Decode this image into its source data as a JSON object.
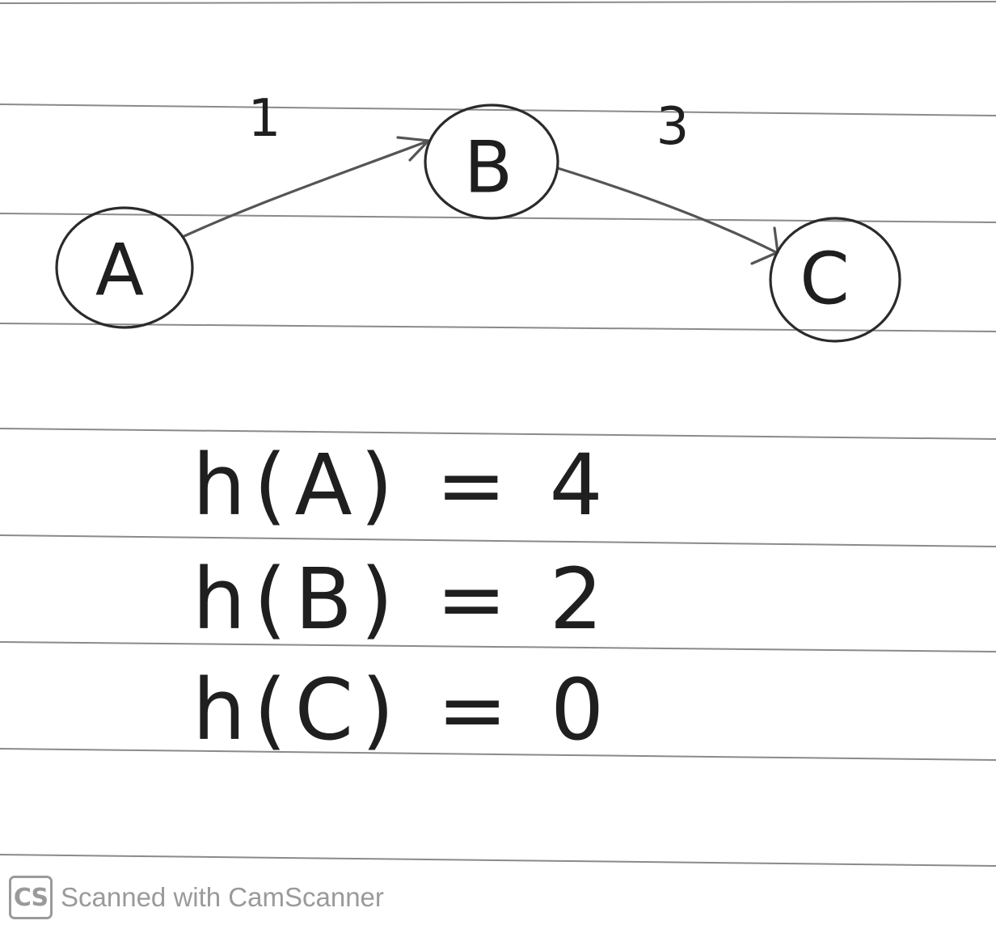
{
  "graph": {
    "nodes": [
      {
        "id": "A",
        "label": "A"
      },
      {
        "id": "B",
        "label": "B"
      },
      {
        "id": "C",
        "label": "C"
      }
    ],
    "edges": [
      {
        "from": "A",
        "to": "B",
        "weight": "1"
      },
      {
        "from": "B",
        "to": "C",
        "weight": "3"
      }
    ]
  },
  "heuristics": [
    {
      "node": "A",
      "text": "h(A) = 4",
      "value": 4
    },
    {
      "node": "B",
      "text": "h(B) = 2",
      "value": 2
    },
    {
      "node": "C",
      "text": "h(C) = 0",
      "value": 0
    }
  ],
  "watermark": {
    "badge": "CS",
    "text": "Scanned with CamScanner"
  },
  "colors": {
    "ink": "#2b2b2b",
    "rule_lines": "#8a8a8a",
    "watermark": "#9a9a9a",
    "paper": "#ffffff"
  }
}
